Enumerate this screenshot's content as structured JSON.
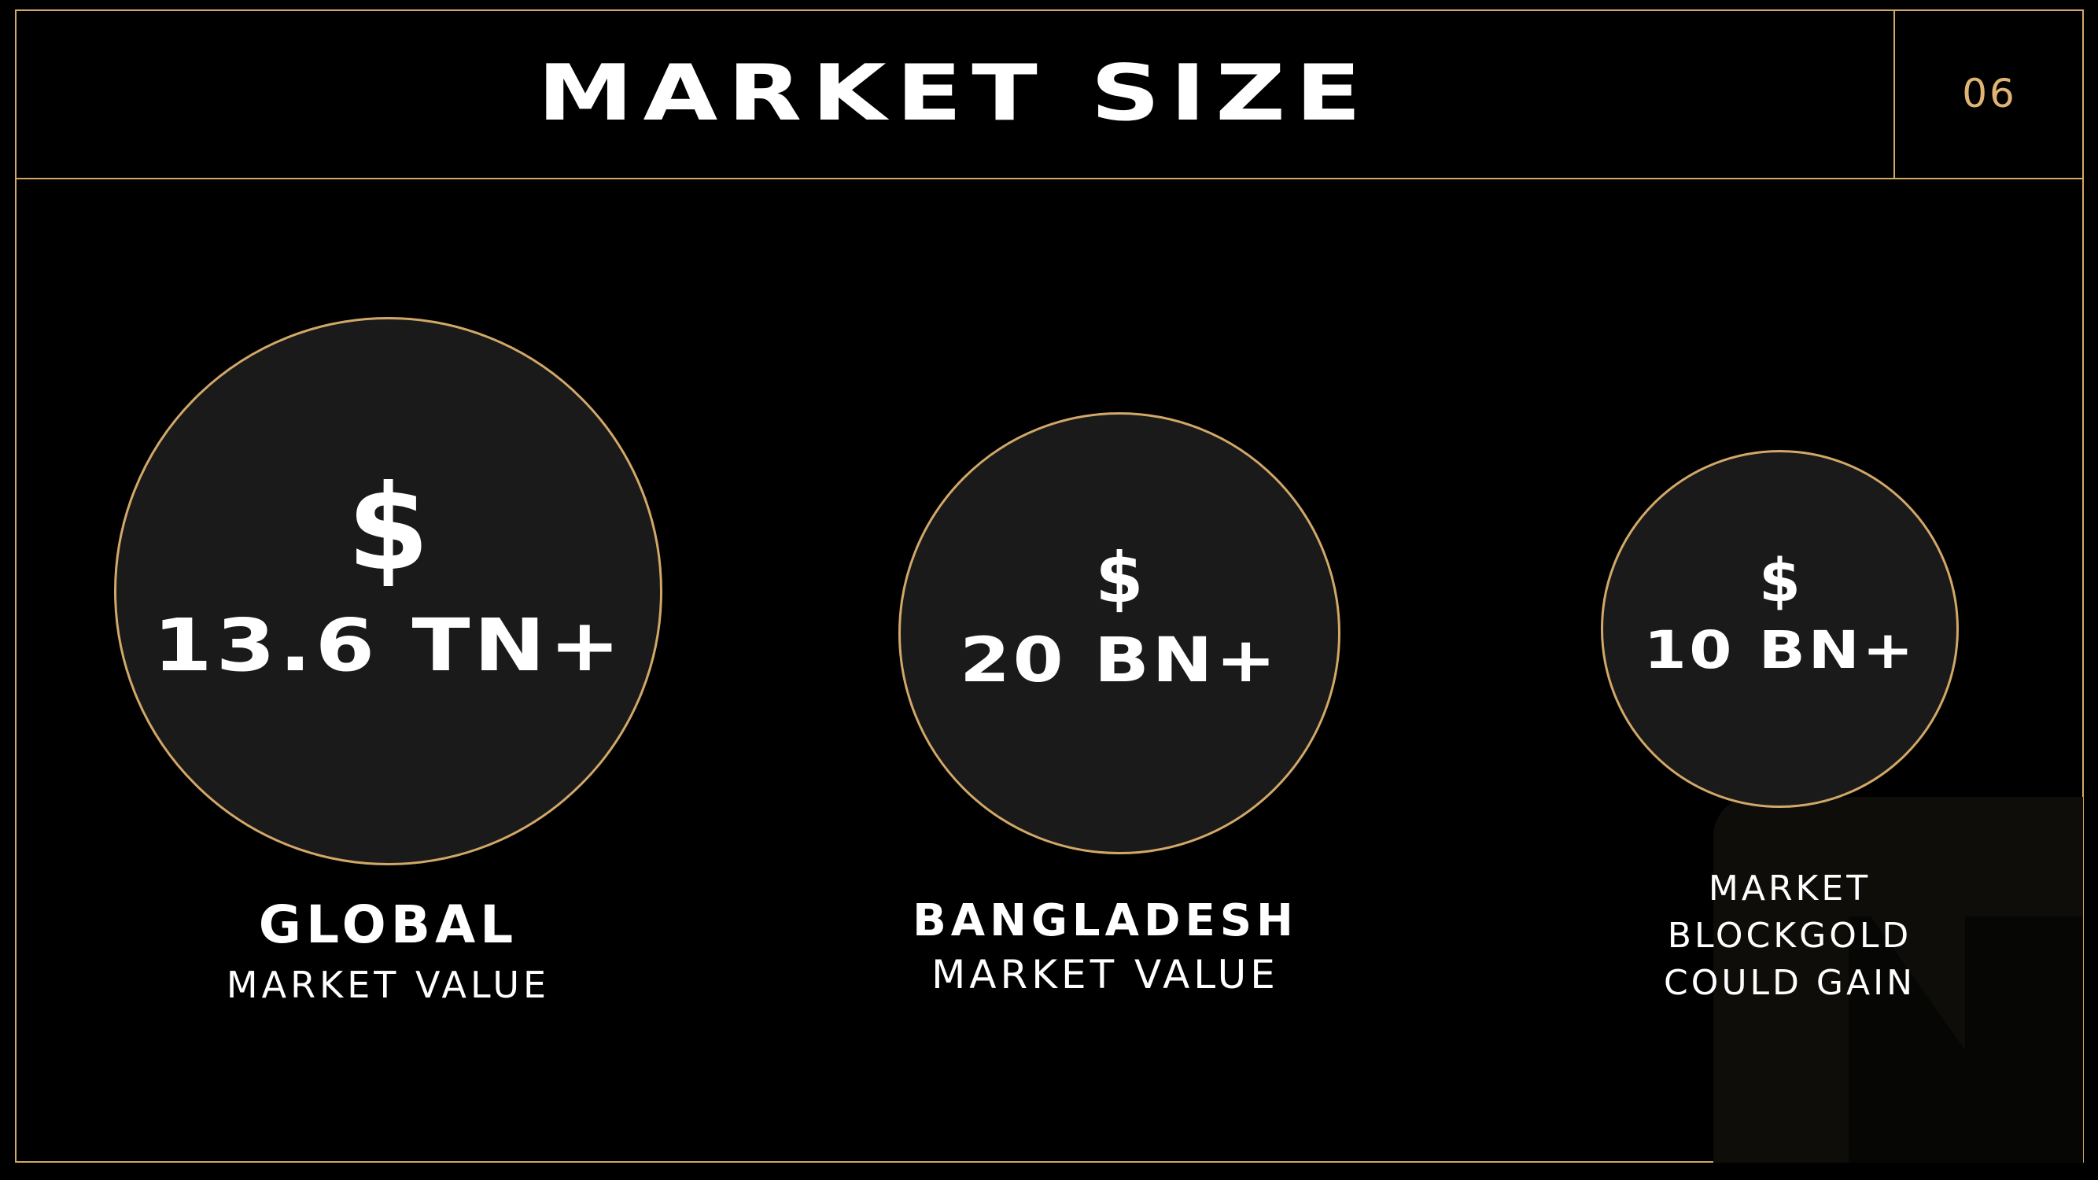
{
  "header": {
    "title": "MARKET SIZE",
    "page_number": "06"
  },
  "stats": [
    {
      "currency": "$",
      "amount": "13.6 TN+",
      "label_main": "GLOBAL",
      "label_sub": "MARKET VALUE"
    },
    {
      "currency": "$",
      "amount": "20 BN+",
      "label_main": "BANGLADESH",
      "label_sub": "MARKET VALUE"
    },
    {
      "currency": "$",
      "amount": "10 BN+",
      "label_lines": [
        "MARKET",
        "BLOCKGOLD",
        "COULD GAIN"
      ]
    }
  ],
  "colors": {
    "background": "#000000",
    "accent": "#d2a868",
    "page_number": "#e0b574",
    "circle_fill": "#1a1a1a",
    "text": "#ffffff"
  }
}
